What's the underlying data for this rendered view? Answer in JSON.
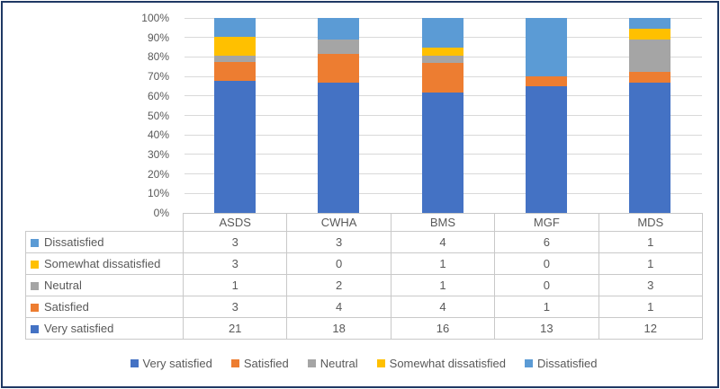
{
  "figure": {
    "description": "100% stacked column chart with data table",
    "background": "#FFFFFF",
    "border_color": "#1F3864"
  },
  "chart_data": {
    "type": "bar",
    "subtype": "percent-stacked-column",
    "title": "",
    "categories": [
      "ASDS",
      "CWHA",
      "BMS",
      "MGF",
      "MDS"
    ],
    "series": [
      {
        "name": "Very satisfied",
        "color": "#4472C4",
        "values": [
          21,
          18,
          16,
          13,
          12
        ]
      },
      {
        "name": "Satisfied",
        "color": "#ED7D31",
        "values": [
          3,
          4,
          4,
          1,
          1
        ]
      },
      {
        "name": "Neutral",
        "color": "#A5A5A5",
        "values": [
          1,
          2,
          1,
          0,
          3
        ]
      },
      {
        "name": "Somewhat dissatisfied",
        "color": "#FFC000",
        "values": [
          3,
          0,
          1,
          0,
          1
        ]
      },
      {
        "name": "Dissatisfied",
        "color": "#5B9BD5",
        "values": [
          3,
          3,
          4,
          6,
          1
        ]
      }
    ],
    "y_axis": {
      "min": 0,
      "max": 100,
      "step": 10,
      "tick_labels": [
        "0%",
        "10%",
        "20%",
        "30%",
        "40%",
        "50%",
        "60%",
        "70%",
        "80%",
        "90%",
        "100%"
      ],
      "grid": true,
      "gridline_color": "#D9D9D9"
    },
    "legend": {
      "position": "bottom",
      "entries": [
        "Very satisfied",
        "Satisfied",
        "Neutral",
        "Somewhat dissatisfied",
        "Dissatisfied"
      ]
    },
    "data_table": {
      "shown": true,
      "column_headers": [
        "ASDS",
        "CWHA",
        "BMS",
        "MGF",
        "MDS"
      ],
      "rows": [
        {
          "label": "Dissatisfied",
          "series": "Dissatisfied",
          "values": [
            3,
            3,
            4,
            6,
            1
          ]
        },
        {
          "label": "Somewhat dissatisfied",
          "series": "Somewhat dissatisfied",
          "values": [
            3,
            0,
            1,
            0,
            1
          ]
        },
        {
          "label": "Neutral",
          "series": "Neutral",
          "values": [
            1,
            2,
            1,
            0,
            3
          ]
        },
        {
          "label": "Satisfied",
          "series": "Satisfied",
          "values": [
            3,
            4,
            4,
            1,
            1
          ]
        },
        {
          "label": "Very satisfied",
          "series": "Very satisfied",
          "values": [
            21,
            18,
            16,
            13,
            12
          ]
        }
      ],
      "border_color": "#C9C9C9",
      "text_color": "#595959"
    }
  }
}
